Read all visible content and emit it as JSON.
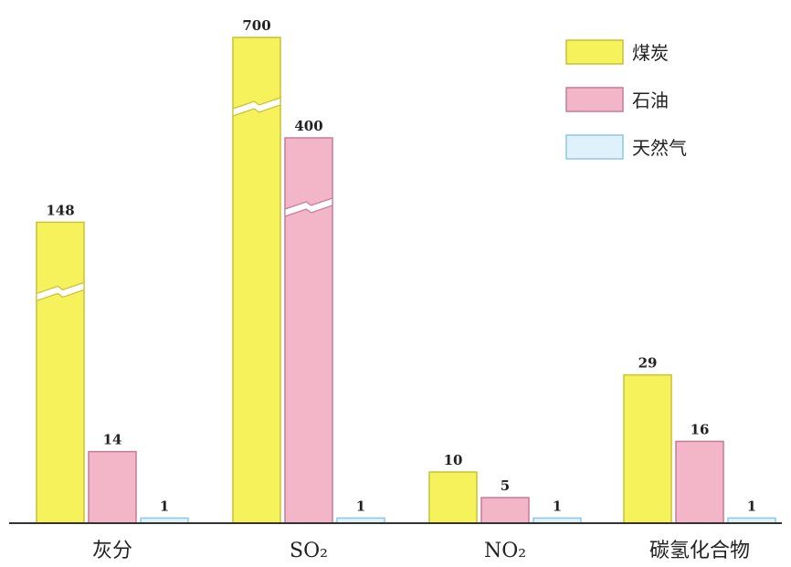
{
  "chart_data": {
    "type": "bar",
    "categories": [
      "灰分",
      "SO₂",
      "NO₂",
      "碳氢化合物"
    ],
    "series": [
      {
        "name": "煤炭",
        "values": [
          148,
          700,
          10,
          29
        ],
        "value_labels": [
          "148",
          "700",
          "10",
          "29"
        ],
        "color": "#f5f25c",
        "stroke": "#c9c234"
      },
      {
        "name": "石油",
        "values": [
          14,
          400,
          5,
          16
        ],
        "value_labels": [
          "14",
          "400",
          "5",
          "16"
        ],
        "color": "#f2b6c8",
        "stroke": "#c77a98"
      },
      {
        "name": "天然气",
        "values": [
          1,
          1,
          1,
          1
        ],
        "value_labels": [
          "1",
          "1",
          "1",
          "1"
        ],
        "color": "#dff1fa",
        "stroke": "#8cc8e6"
      }
    ],
    "axis_breaks": true,
    "grid": false,
    "legend_position": "top-right",
    "title": "",
    "xlabel": "",
    "ylabel": ""
  }
}
